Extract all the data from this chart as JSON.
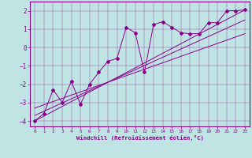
{
  "title": "",
  "xlabel": "Windchill (Refroidissement éolien,°C)",
  "ylabel": "",
  "xlim": [
    -0.5,
    23.5
  ],
  "ylim": [
    -4.3,
    2.5
  ],
  "xticks": [
    0,
    1,
    2,
    3,
    4,
    5,
    6,
    7,
    8,
    9,
    10,
    11,
    12,
    13,
    14,
    15,
    16,
    17,
    18,
    19,
    20,
    21,
    22,
    23
  ],
  "yticks": [
    -4,
    -3,
    -2,
    -1,
    0,
    1,
    2
  ],
  "bg_color": "#c0e4e4",
  "line_color": "#880088",
  "scatter_x": [
    0,
    1,
    2,
    3,
    4,
    5,
    6,
    7,
    8,
    9,
    10,
    11,
    12,
    13,
    14,
    15,
    16,
    17,
    18,
    19,
    20,
    21,
    22,
    23
  ],
  "scatter_y": [
    -4.0,
    -3.6,
    -2.3,
    -3.0,
    -1.85,
    -3.1,
    -2.0,
    -1.35,
    -0.75,
    -0.6,
    1.1,
    0.8,
    -1.35,
    1.25,
    1.4,
    1.1,
    0.8,
    0.75,
    0.75,
    1.35,
    1.35,
    2.0,
    2.0,
    2.05
  ],
  "line1_x": [
    0,
    23
  ],
  "line1_y": [
    -4.0,
    2.05
  ],
  "line2_x": [
    0,
    23
  ],
  "line2_y": [
    -3.7,
    1.5
  ],
  "line3_x": [
    0,
    23
  ],
  "line3_y": [
    -3.3,
    0.75
  ],
  "figsize": [
    3.2,
    2.0
  ],
  "dpi": 100
}
